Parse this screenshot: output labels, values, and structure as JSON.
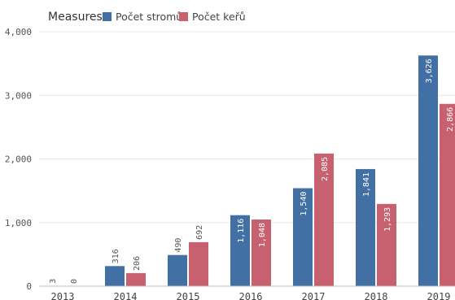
{
  "chart_data": {
    "type": "bar",
    "legend": {
      "title": "Measures",
      "placement": "top-left"
    },
    "categories": [
      "2013",
      "2014",
      "2015",
      "2016",
      "2017",
      "2018",
      "2019"
    ],
    "series": [
      {
        "name": "Počet stromů",
        "color": "#4270a5",
        "values": [
          3,
          316,
          490,
          1116,
          1540,
          1841,
          3626
        ],
        "labels": [
          "3",
          "316",
          "490",
          "1,116",
          "1,540",
          "1,841",
          "3,626"
        ]
      },
      {
        "name": "Počet keřů",
        "color": "#c8616f",
        "values": [
          0,
          206,
          692,
          1048,
          2085,
          1293,
          2866
        ],
        "labels": [
          "0",
          "206",
          "692",
          "1,048",
          "2,085",
          "1,293",
          "2,866"
        ]
      }
    ],
    "yticks": [
      {
        "value": 0,
        "label": "0"
      },
      {
        "value": 1000,
        "label": "1,000"
      },
      {
        "value": 2000,
        "label": "2,000"
      },
      {
        "value": 3000,
        "label": "3,000"
      },
      {
        "value": 4000,
        "label": "4,000"
      }
    ],
    "ylim": [
      0,
      4000
    ],
    "grid": true
  }
}
